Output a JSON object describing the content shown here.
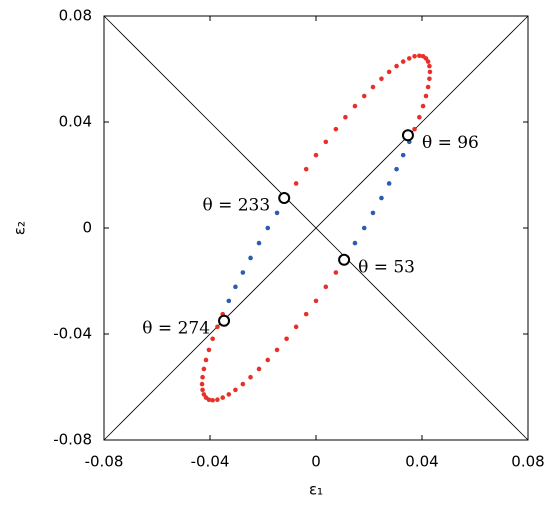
{
  "chart_data": {
    "type": "scatter",
    "x_label": "ε₁",
    "y_label": "ε₂",
    "xlim": [
      -0.08,
      0.08
    ],
    "ylim": [
      -0.08,
      0.08
    ],
    "xticks": [
      -0.08,
      -0.04,
      0,
      0.04,
      0.08
    ],
    "yticks": [
      -0.08,
      -0.04,
      0,
      0.04,
      0.08
    ],
    "series": [
      {
        "color": "#e8302a",
        "x": [
          -0.0276,
          -0.0247,
          -0.0215,
          -0.0182,
          -0.0147,
          -0.0111,
          -0.0075,
          -0.0037,
          0,
          0.0037,
          0.0075,
          0.0372,
          0.039,
          0.0404,
          0.0415,
          0.0423,
          0.0428,
          0.043,
          0.0428,
          0.0423,
          0.0415,
          0.0404,
          0.039,
          0.0372,
          0.0352,
          0.0329,
          0.0304,
          0.0276,
          0.0247,
          0.0215,
          0.0182,
          0.0147,
          0.0111,
          0.0075,
          0.0037,
          0,
          -0.0037,
          -0.0075,
          -0.0352,
          -0.039,
          -0.0404,
          -0.0415,
          -0.0423,
          -0.0428,
          -0.043,
          -0.0428,
          -0.0423,
          -0.0415,
          -0.0404,
          -0.039,
          -0.0372,
          -0.0352,
          -0.0329,
          -0.0304,
          -0.0372
        ],
        "y": [
          -0.0589,
          -0.0563,
          -0.0532,
          -0.0498,
          -0.046,
          -0.0418,
          -0.0373,
          -0.0325,
          -0.0275,
          -0.0222,
          -0.0168,
          0.0373,
          0.0418,
          0.046,
          0.0498,
          0.0532,
          0.0563,
          0.0589,
          0.0611,
          0.0628,
          0.064,
          0.0648,
          0.065,
          0.0648,
          0.064,
          0.0628,
          0.0611,
          0.0589,
          0.0563,
          0.0532,
          0.0498,
          0.046,
          0.0418,
          0.0373,
          0.0325,
          0.0275,
          0.0222,
          0.0168,
          -0.0325,
          -0.0418,
          -0.046,
          -0.0498,
          -0.0532,
          -0.0563,
          -0.0589,
          -0.0611,
          -0.0628,
          -0.064,
          -0.0648,
          -0.065,
          -0.0648,
          -0.064,
          -0.0628,
          -0.0611,
          -0.0373
        ]
      },
      {
        "color": "#2a5db0",
        "x": [
          0.0111,
          0.0147,
          0.0182,
          0.0215,
          0.0247,
          0.0276,
          0.0304,
          0.0329,
          0.0352,
          -0.0111,
          -0.0147,
          -0.0182,
          -0.0215,
          -0.0247,
          -0.0276,
          -0.0304,
          -0.0329
        ],
        "y": [
          -0.0113,
          -0.0057,
          0,
          0.0057,
          0.0113,
          0.0168,
          0.0222,
          0.0275,
          0.0325,
          0.0113,
          0.0057,
          0,
          -0.0057,
          -0.0113,
          -0.0168,
          -0.0222,
          -0.0275
        ]
      }
    ],
    "markers": {
      "x": [
        0.0347,
        -0.012,
        0.0106,
        -0.0347
      ],
      "y": [
        0.035,
        0.0113,
        -0.012,
        -0.035
      ],
      "labels": [
        "θ = 96",
        "θ = 233",
        "θ = 53",
        "θ = 274"
      ]
    }
  }
}
